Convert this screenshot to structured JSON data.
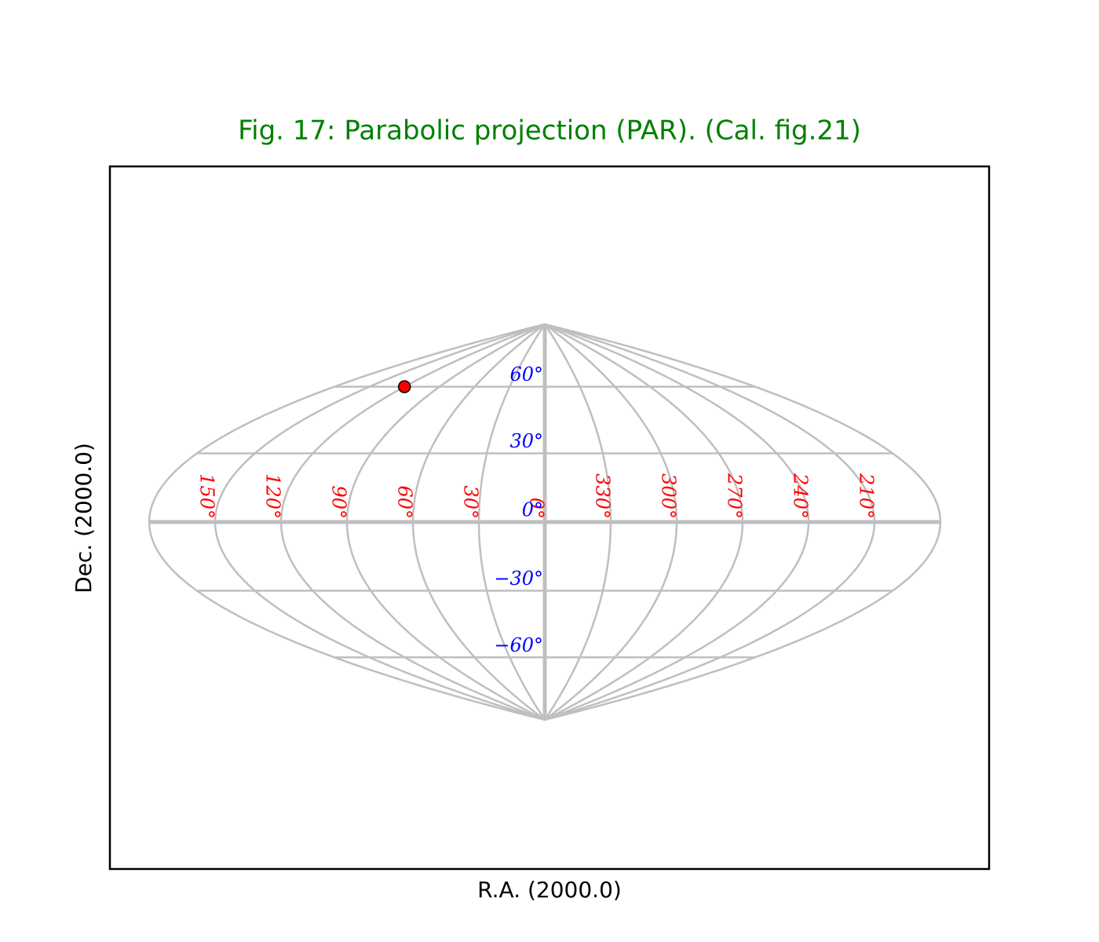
{
  "chart_data": {
    "type": "graticule",
    "title": "Fig. 17: Parabolic projection (PAR). (Cal. fig.21)",
    "xlabel": "R.A. (2000.0)",
    "ylabel": "Dec. (2000.0)",
    "xlim": [
      180,
      -180
    ],
    "ylim": [
      -90,
      90
    ],
    "lon_ticks": [
      {
        "value": 150,
        "label": "150°"
      },
      {
        "value": 120,
        "label": "120°"
      },
      {
        "value": 90,
        "label": "90°"
      },
      {
        "value": 60,
        "label": "60°"
      },
      {
        "value": 30,
        "label": "30°"
      },
      {
        "value": 0,
        "label": "0°"
      },
      {
        "value": 330,
        "label": "330°"
      },
      {
        "value": 300,
        "label": "300°"
      },
      {
        "value": 270,
        "label": "270°"
      },
      {
        "value": 240,
        "label": "240°"
      },
      {
        "value": 210,
        "label": "210°"
      }
    ],
    "lat_ticks": [
      {
        "value": 60,
        "label": "60°"
      },
      {
        "value": 30,
        "label": "30°"
      },
      {
        "value": 0,
        "label": "0°"
      },
      {
        "value": -30,
        "label": "−30°"
      },
      {
        "value": -60,
        "label": "−60°"
      }
    ],
    "points": {
      "lon": [
        120
      ],
      "lat": [
        60
      ],
      "color": "#ff0000"
    },
    "title_color": "#008000",
    "lon_label_color": "#ff0000",
    "lat_label_color": "#0000ff",
    "grid_color": "#bfbfbf"
  }
}
